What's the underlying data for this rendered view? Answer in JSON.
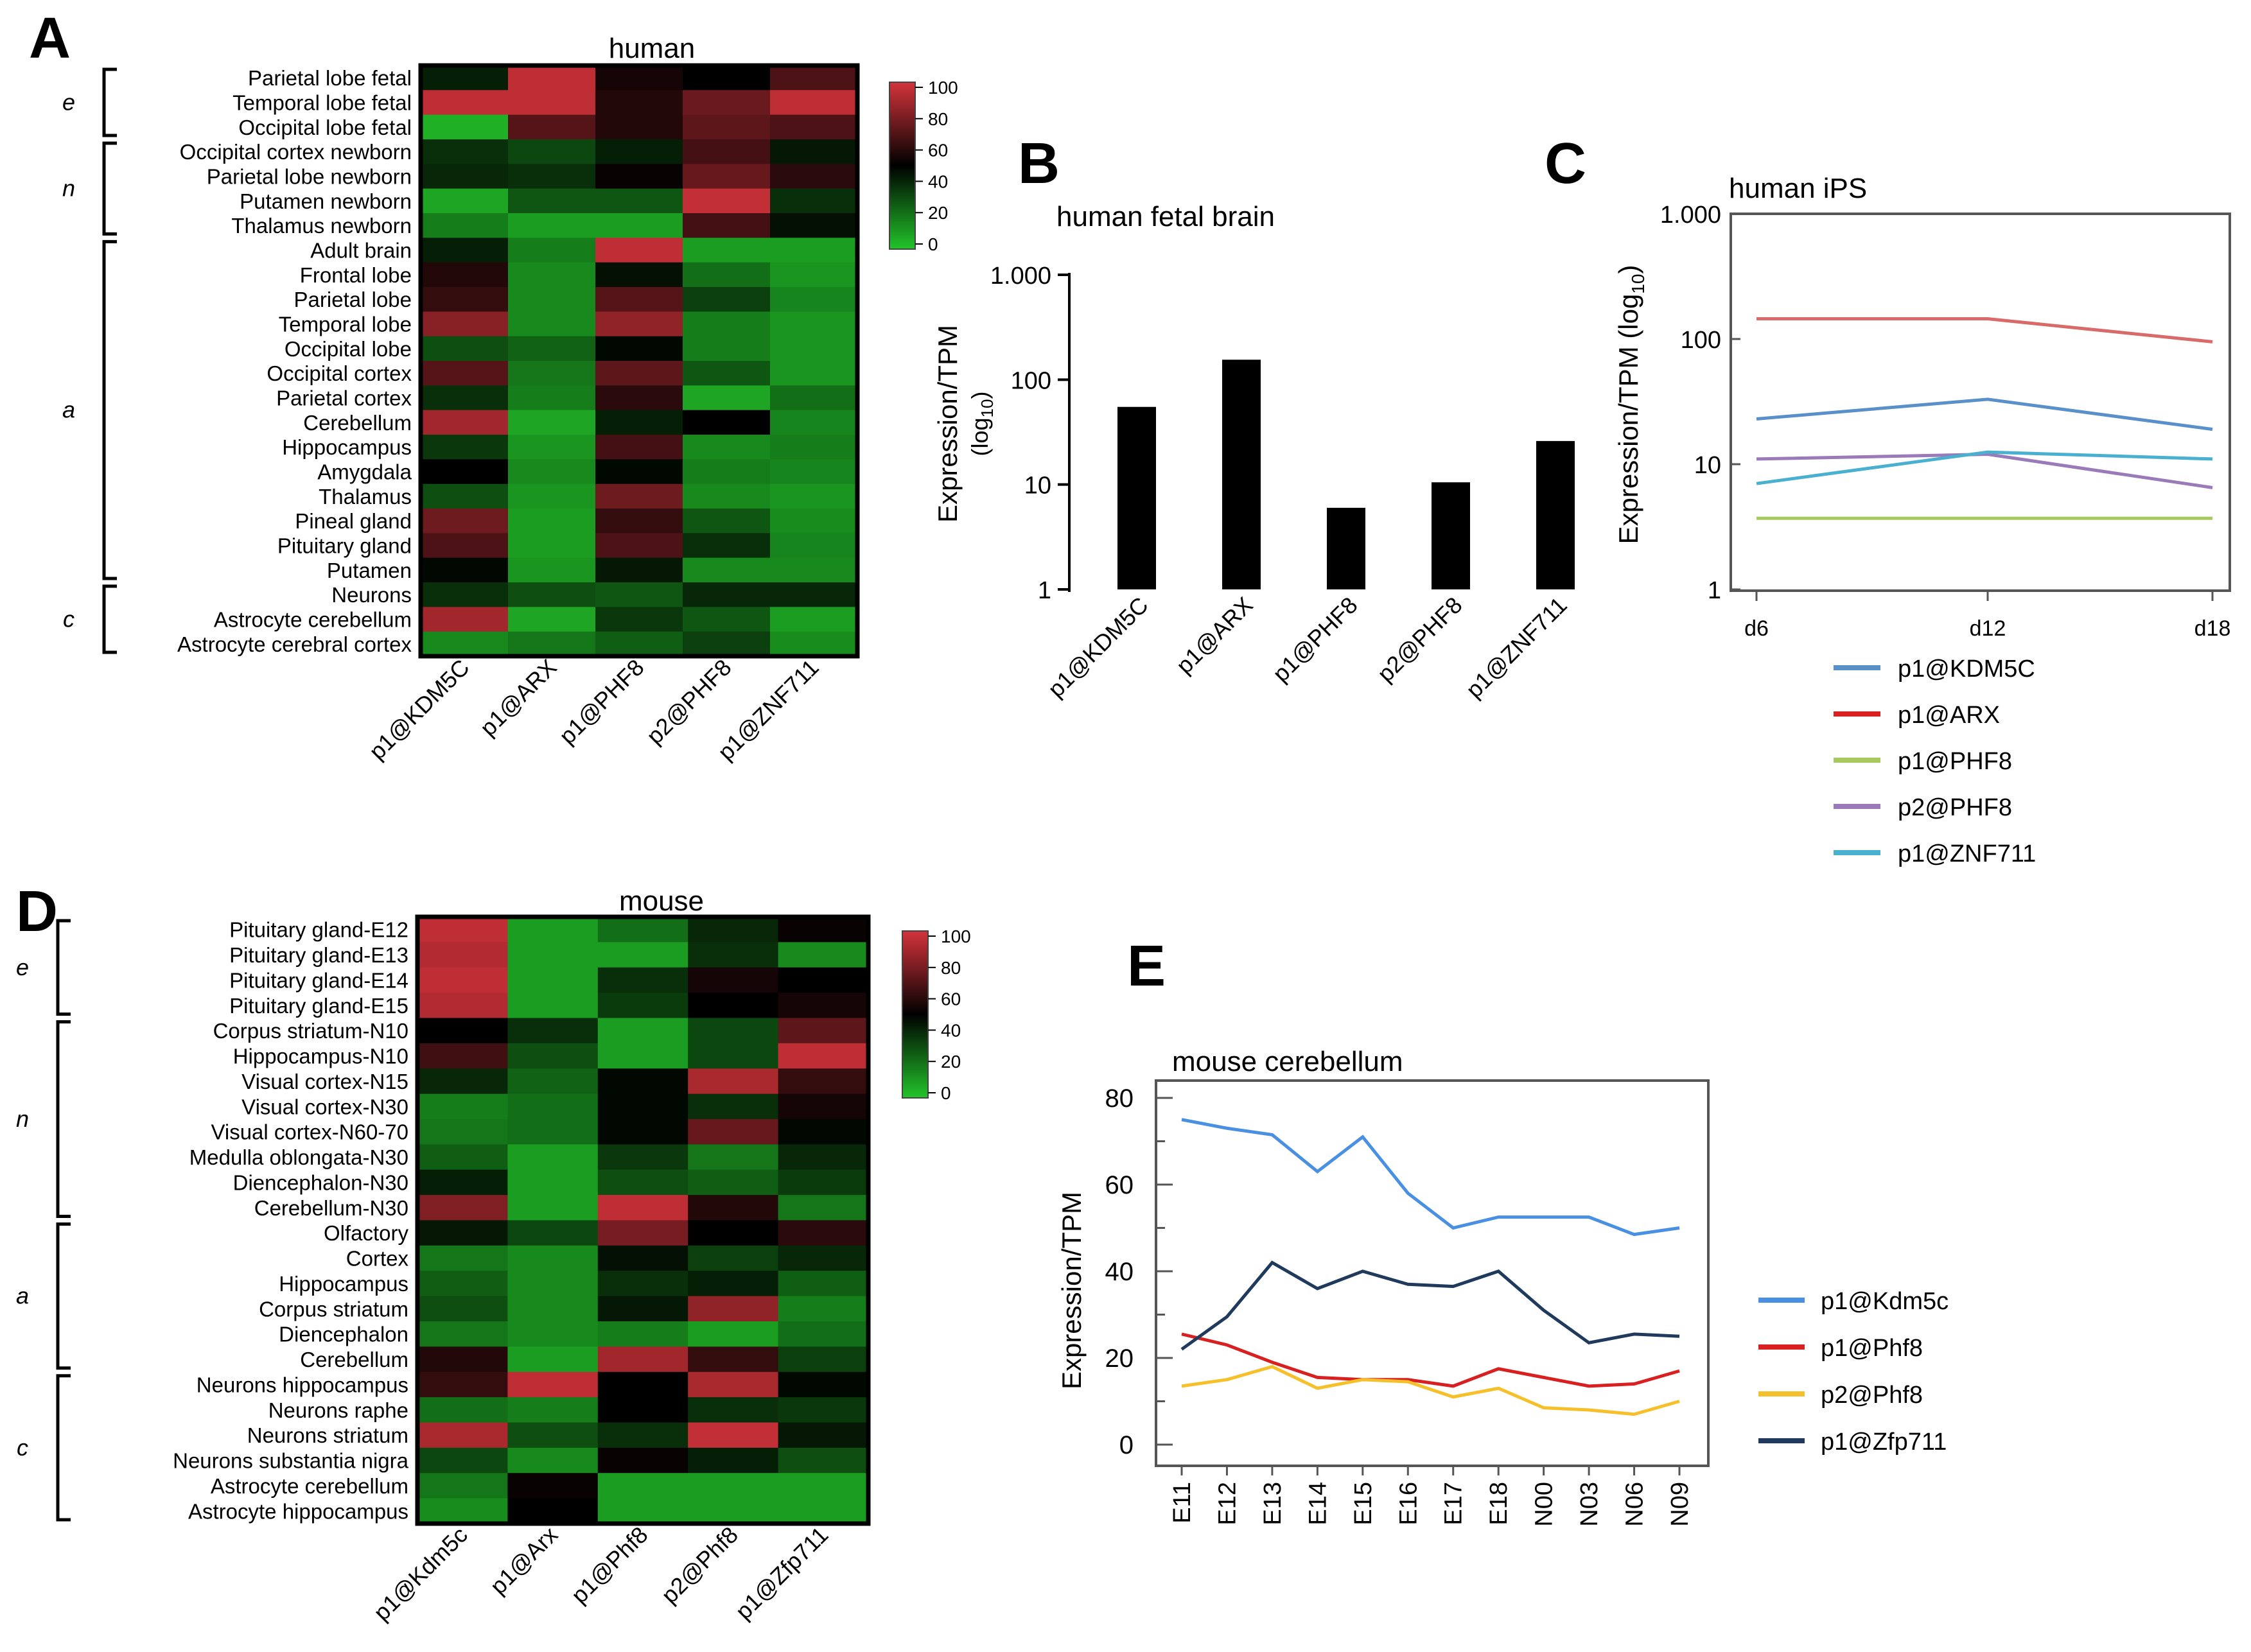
{
  "panel_letters": {
    "a": "A",
    "b": "B",
    "c": "C",
    "d": "D",
    "e": "E"
  },
  "colorbar_ticks": [
    "100",
    "80",
    "60",
    "40",
    "20",
    "0"
  ],
  "colors": {
    "heat_low": "#22c42a",
    "heat_mid": "#000000",
    "heat_high": "#d4333b",
    "kdm5c": "#5a90c9",
    "arx": "#d82020",
    "phf8_1": "#a8c860",
    "phf8_2": "#9a7ab8",
    "znf711": "#4ab0d0",
    "mouse_kdm5c": "#4a90e2",
    "mouse_phf8_1": "#d82020",
    "mouse_phf8_2": "#f5c02a",
    "mouse_zfp711": "#1f3a5c",
    "bar_fill": "#000000"
  },
  "chart_data": [
    {
      "id": "A",
      "type": "heatmap",
      "title": "human",
      "columns": [
        "p1@KDM5C",
        "p1@ARX",
        "p1@PHF8",
        "p2@PHF8",
        "p1@ZNF711"
      ],
      "rows": [
        "Parietal lobe fetal",
        "Temporal lobe fetal",
        "Occipital lobe fetal",
        "Occipital cortex newborn",
        "Parietal lobe newborn",
        "Putamen newborn",
        "Thalamus newborn",
        "Adult brain",
        "Frontal lobe",
        "Parietal lobe",
        "Temporal lobe",
        "Occipital lobe",
        "Occipital cortex",
        "Parietal cortex",
        "Cerebellum",
        "Hippocampus",
        "Amygdala",
        "Thalamus",
        "Pineal gland",
        "Pituitary gland",
        "Putamen",
        "Neurons",
        "Astrocyte cerebellum",
        "Astrocyte cerebral cortex"
      ],
      "groups": [
        {
          "label": "e",
          "from": 0,
          "to": 2
        },
        {
          "label": "n",
          "from": 3,
          "to": 6
        },
        {
          "label": "a",
          "from": 7,
          "to": 20
        },
        {
          "label": "c",
          "from": 21,
          "to": 23
        }
      ],
      "values": [
        [
          42,
          95,
          55,
          50,
          68
        ],
        [
          95,
          95,
          58,
          75,
          95
        ],
        [
          5,
          70,
          58,
          72,
          68
        ],
        [
          38,
          32,
          42,
          66,
          44
        ],
        [
          40,
          38,
          52,
          74,
          60
        ],
        [
          8,
          28,
          28,
          96,
          38
        ],
        [
          18,
          10,
          10,
          66,
          46
        ],
        [
          42,
          18,
          95,
          10,
          10
        ],
        [
          58,
          15,
          46,
          22,
          12
        ],
        [
          62,
          15,
          70,
          34,
          16
        ],
        [
          82,
          15,
          84,
          18,
          12
        ],
        [
          30,
          25,
          48,
          18,
          12
        ],
        [
          70,
          20,
          72,
          28,
          12
        ],
        [
          38,
          18,
          60,
          8,
          22
        ],
        [
          88,
          8,
          42,
          50,
          16
        ],
        [
          36,
          12,
          66,
          15,
          18
        ],
        [
          50,
          15,
          48,
          18,
          16
        ],
        [
          30,
          12,
          76,
          15,
          12
        ],
        [
          76,
          10,
          62,
          28,
          14
        ],
        [
          68,
          10,
          68,
          38,
          16
        ],
        [
          48,
          12,
          44,
          15,
          15
        ],
        [
          38,
          30,
          28,
          40,
          40
        ],
        [
          88,
          8,
          36,
          28,
          10
        ],
        [
          15,
          20,
          26,
          34,
          14
        ]
      ],
      "colorbar": [
        0,
        100
      ]
    },
    {
      "id": "B",
      "type": "bar",
      "title": "human fetal brain",
      "ylabel": "Expression/TPM",
      "ylabel_sub": "(log",
      "ylabel_sub2": "10",
      "ylabel_sub3": ")",
      "yscale": "log",
      "ylim": [
        1,
        1000
      ],
      "yticks": [
        1,
        10,
        100,
        1000
      ],
      "ytick_labels": [
        "1",
        "10",
        "100",
        "1.000"
      ],
      "categories": [
        "p1@KDM5C",
        "p1@ARX",
        "p1@PHF8",
        "p2@PHF8",
        "p1@ZNF711"
      ],
      "values": [
        55,
        155,
        6,
        10.5,
        26
      ]
    },
    {
      "id": "C",
      "type": "line",
      "title": "human iPS",
      "ylabel": "Expression/TPM (log",
      "ylabel_sub": "10",
      "ylabel_end": ")",
      "yscale": "log",
      "ylim": [
        1,
        1000
      ],
      "yticks": [
        1,
        10,
        100,
        1000
      ],
      "ytick_labels": [
        "1",
        "10",
        "100",
        "1.000"
      ],
      "x": [
        "d6",
        "d12",
        "d18"
      ],
      "series": [
        {
          "name": "p1@KDM5C",
          "color": "#5a90c9",
          "values": [
            23,
            33,
            19
          ]
        },
        {
          "name": "p1@ARX",
          "color": "#d86a6a",
          "legend_color": "#d82020",
          "values": [
            145,
            145,
            95
          ]
        },
        {
          "name": "p1@PHF8",
          "color": "#a8c860",
          "values": [
            3.7,
            3.7,
            3.7
          ]
        },
        {
          "name": "p2@PHF8",
          "color": "#9a7ab8",
          "values": [
            11,
            12,
            6.5
          ]
        },
        {
          "name": "p1@ZNF711",
          "color": "#4ab0d0",
          "values": [
            7,
            12.5,
            11
          ]
        }
      ]
    },
    {
      "id": "D",
      "type": "heatmap",
      "title": "mouse",
      "columns": [
        "p1@Kdm5c",
        "p1@Arx",
        "p1@Phf8",
        "p2@Phf8",
        "p1@Zfp711"
      ],
      "rows": [
        "Pituitary gland-E12",
        "Pituitary gland-E13",
        "Pituitary gland-E14",
        "Pituitary gland-E15",
        "Corpus striatum-N10",
        "Hippocampus-N10",
        "Visual cortex-N15",
        "Visual cortex-N30",
        "Visual cortex-N60-70",
        "Medulla oblongata-N30",
        "Diencephalon-N30",
        "Cerebellum-N30",
        "Olfactory",
        "Cortex",
        "Hippocampus",
        "Corpus striatum",
        "Diencephalon",
        "Cerebellum",
        "Neurons hippocampus",
        "Neurons raphe",
        "Neurons striatum",
        "Neurons substantia nigra",
        "Astrocyte cerebellum",
        "Astrocyte hippocampus"
      ],
      "groups": [
        {
          "label": "e",
          "from": 0,
          "to": 3
        },
        {
          "label": "n",
          "from": 4,
          "to": 11
        },
        {
          "label": "a",
          "from": 12,
          "to": 17
        },
        {
          "label": "c",
          "from": 18,
          "to": 23
        }
      ],
      "values": [
        [
          95,
          10,
          22,
          40,
          52
        ],
        [
          92,
          10,
          10,
          38,
          15
        ],
        [
          95,
          10,
          38,
          55,
          50
        ],
        [
          92,
          10,
          35,
          50,
          55
        ],
        [
          50,
          38,
          10,
          32,
          72
        ],
        [
          65,
          30,
          10,
          32,
          95
        ],
        [
          40,
          25,
          48,
          90,
          62
        ],
        [
          18,
          22,
          48,
          38,
          55
        ],
        [
          20,
          22,
          48,
          74,
          48
        ],
        [
          26,
          10,
          36,
          20,
          40
        ],
        [
          42,
          10,
          30,
          26,
          35
        ],
        [
          80,
          10,
          95,
          58,
          20
        ],
        [
          44,
          32,
          78,
          50,
          60
        ],
        [
          20,
          15,
          46,
          34,
          40
        ],
        [
          26,
          15,
          38,
          42,
          26
        ],
        [
          30,
          15,
          44,
          84,
          18
        ],
        [
          20,
          15,
          18,
          10,
          22
        ],
        [
          58,
          10,
          88,
          62,
          34
        ],
        [
          62,
          95,
          50,
          90,
          48
        ],
        [
          22,
          18,
          50,
          38,
          36
        ],
        [
          90,
          30,
          38,
          96,
          44
        ],
        [
          32,
          15,
          52,
          42,
          30
        ],
        [
          20,
          52,
          10,
          10,
          10
        ],
        [
          14,
          50,
          10,
          10,
          10
        ]
      ],
      "colorbar": [
        0,
        100
      ]
    },
    {
      "id": "E",
      "type": "line",
      "title": "mouse cerebellum",
      "ylabel": "Expression/TPM",
      "ylim": [
        0,
        85
      ],
      "yticks": [
        0,
        20,
        40,
        60,
        80
      ],
      "ytick_labels": [
        "0",
        "20",
        "40",
        "60",
        "80"
      ],
      "x": [
        "E11",
        "E12",
        "E13",
        "E14",
        "E15",
        "E16",
        "E17",
        "E18",
        "N00",
        "N03",
        "N06",
        "N09"
      ],
      "series": [
        {
          "name": "p1@Kdm5c",
          "color": "#4a90e2",
          "values": [
            75,
            73,
            71.5,
            63,
            71,
            58,
            50,
            52.5,
            52.5,
            52.5,
            48.5,
            50
          ]
        },
        {
          "name": "p1@Phf8",
          "color": "#d82020",
          "values": [
            25.5,
            23,
            19,
            15.5,
            15,
            15,
            13.5,
            17.5,
            15.5,
            13.5,
            14,
            17
          ]
        },
        {
          "name": "p2@Phf8",
          "color": "#f5c02a",
          "values": [
            13.5,
            15,
            18,
            13,
            15,
            14.5,
            11,
            13,
            8.5,
            8,
            7,
            10
          ]
        },
        {
          "name": "p1@Zfp711",
          "color": "#1f3a5c",
          "values": [
            22,
            29.5,
            42,
            36,
            40,
            37,
            36.5,
            40,
            31,
            23.5,
            25.5,
            25
          ]
        }
      ]
    }
  ]
}
